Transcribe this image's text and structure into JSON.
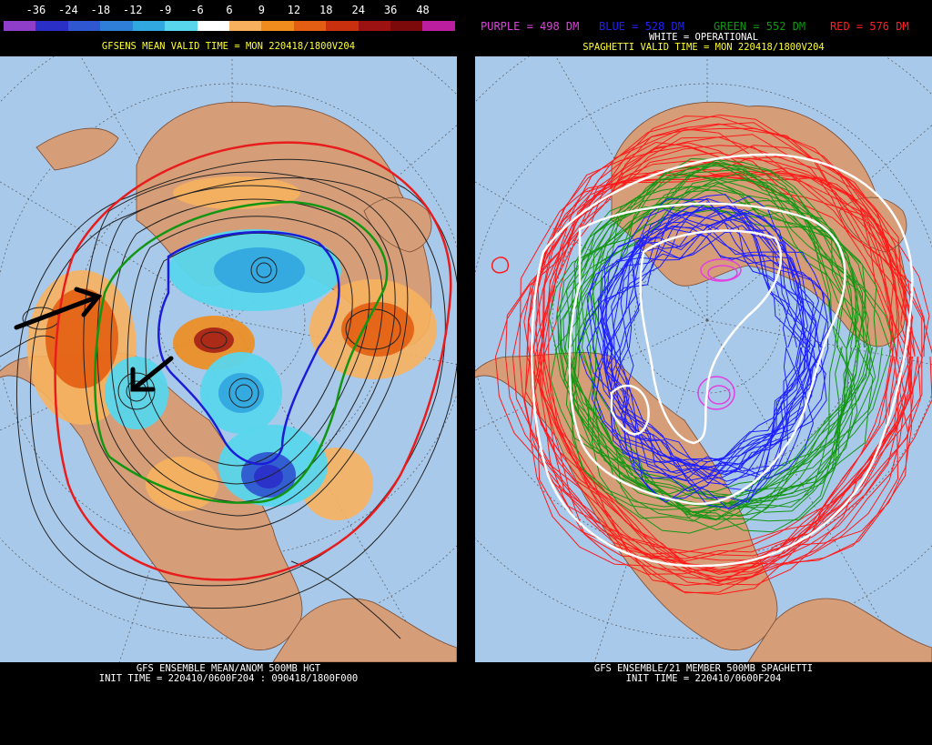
{
  "left": {
    "colorbar": {
      "labels": [
        "-36",
        "-24",
        "-18",
        "-12",
        "-9",
        "-6",
        "6",
        "9",
        "12",
        "18",
        "24",
        "36",
        "48"
      ],
      "colors": [
        "#8e3ec8",
        "#2a2fc8",
        "#2e57d0",
        "#2f7fd8",
        "#32a8e0",
        "#58d6ec",
        "#ffffff",
        "#f7b15e",
        "#f08c1e",
        "#e35e12",
        "#c8300e",
        "#9c1212",
        "#7d0a0a",
        "#bb1fa0"
      ]
    },
    "title": "GFSENS MEAN VALID TIME = MON 220418/1800V204",
    "footer_line1": "GFS ENSEMBLE MEAN/ANOM 500MB HGT",
    "footer_line2": "INIT TIME = 220410/0600F204 : 090418/1800F000"
  },
  "right": {
    "legend": {
      "purple": "PURPLE = 498 DM",
      "blue": "BLUE = 528 DM",
      "green": "GREEN = 552 DM",
      "red": "RED = 576 DM"
    },
    "legend_colors": {
      "purple": "#e040e0",
      "blue": "#2020ff",
      "green": "#129612",
      "red": "#ff2020"
    },
    "white_label": "WHITE = OPERATIONAL",
    "title": "SPAGHETTI VALID TIME = MON 220418/1800V204",
    "footer_line1": "GFS ENSEMBLE/21 MEMBER 500MB SPAGHETTI",
    "footer_line2": "INIT TIME = 220410/0600F204"
  },
  "map_colors": {
    "ocean": "#a9c9ea",
    "land": "#d59e79"
  }
}
